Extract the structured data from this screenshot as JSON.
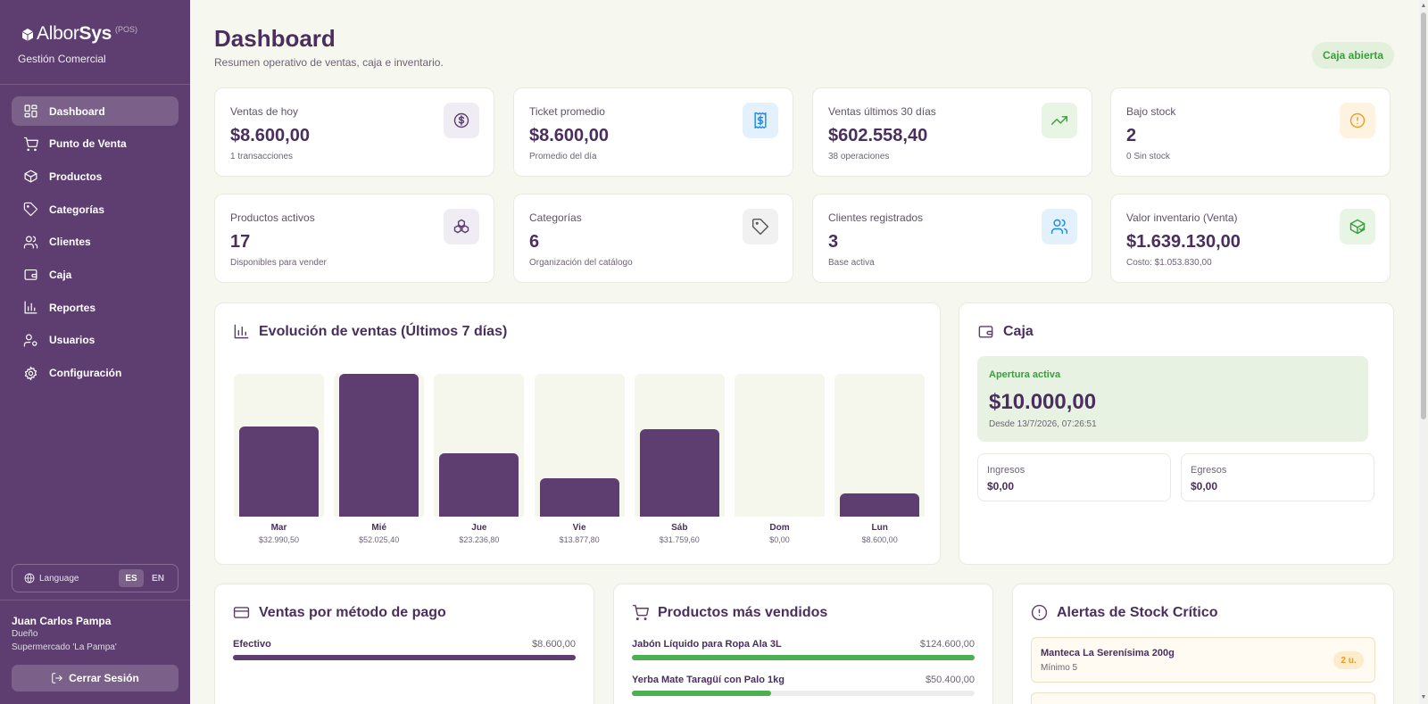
{
  "brand": {
    "name_light": "Albor",
    "name_bold": "Sys",
    "tag": "(POS)",
    "subtitle": "Gestión Comercial"
  },
  "nav": [
    {
      "label": "Dashboard",
      "icon": "dashboard-icon",
      "active": true
    },
    {
      "label": "Punto de Venta",
      "icon": "cart-icon"
    },
    {
      "label": "Productos",
      "icon": "box-icon"
    },
    {
      "label": "Categorías",
      "icon": "tag-icon"
    },
    {
      "label": "Clientes",
      "icon": "users-icon"
    },
    {
      "label": "Caja",
      "icon": "wallet-icon"
    },
    {
      "label": "Reportes",
      "icon": "bar-chart-icon"
    },
    {
      "label": "Usuarios",
      "icon": "user-key-icon"
    },
    {
      "label": "Configuración",
      "icon": "gear-icon"
    }
  ],
  "language": {
    "label": "Language",
    "options": [
      "ES",
      "EN"
    ],
    "selected": "ES"
  },
  "user": {
    "name": "Juan Carlos Pampa",
    "role": "Dueño",
    "store": "Supermercado 'La Pampa'",
    "logout": "Cerrar Sesión"
  },
  "header": {
    "title": "Dashboard",
    "subtitle": "Resumen operativo de ventas, caja e inventario.",
    "status": "Caja abierta"
  },
  "stats": [
    {
      "label": "Ventas de hoy",
      "value": "$8.600,00",
      "sub": "1 transacciones",
      "icon": "dollar-icon",
      "color": "#5e3d70",
      "bg": "#efedf3"
    },
    {
      "label": "Ticket promedio",
      "value": "$8.600,00",
      "sub": "Promedio del día",
      "icon": "receipt-icon",
      "color": "#1e88e5",
      "bg": "#e3f1fc"
    },
    {
      "label": "Ventas últimos 30 días",
      "value": "$602.558,40",
      "sub": "38 operaciones",
      "icon": "trend-up-icon",
      "color": "#3d9d3d",
      "bg": "#e8f4e4"
    },
    {
      "label": "Bajo stock",
      "value": "2",
      "sub": "0 Sin stock",
      "icon": "alert-circle-icon",
      "color": "#f29d1f",
      "bg": "#fef3e1"
    },
    {
      "label": "Productos activos",
      "value": "17",
      "sub": "Disponibles para vender",
      "icon": "boxes-icon",
      "color": "#5e3d70",
      "bg": "#efedf3"
    },
    {
      "label": "Categorías",
      "value": "6",
      "sub": "Organización del catálogo",
      "icon": "tag-icon",
      "color": "#555555",
      "bg": "#f1f1f1"
    },
    {
      "label": "Clientes registrados",
      "value": "3",
      "sub": "Base activa",
      "icon": "users-icon",
      "color": "#1e88e5",
      "bg": "#e3f1fc"
    },
    {
      "label": "Valor inventario (Venta)",
      "value": "$1.639.130,00",
      "sub": "Costo: $1.053.830,00",
      "icon": "package-check-icon",
      "color": "#3d9d3d",
      "bg": "#e8f4e4"
    }
  ],
  "sales_chart": {
    "title": "Evolución de ventas (Últimos 7 días)",
    "chart_data": {
      "type": "bar",
      "categories": [
        "Mar",
        "Mié",
        "Jue",
        "Vie",
        "Sáb",
        "Dom",
        "Lun"
      ],
      "values": [
        32990.5,
        52025.4,
        23236.8,
        13877.8,
        31759.6,
        0,
        8600.0
      ],
      "value_labels": [
        "$32.990,50",
        "$52.025,40",
        "$23.236,80",
        "$13.877,80",
        "$31.759,60",
        "$0,00",
        "$8.600,00"
      ],
      "ylim": [
        0,
        52025.4
      ]
    }
  },
  "caja": {
    "title": "Caja",
    "active_label": "Apertura activa",
    "amount": "$10.000,00",
    "since": "Desde 13/7/2026, 07:26:51",
    "ingresos_label": "Ingresos",
    "ingresos": "$0,00",
    "egresos_label": "Egresos",
    "egresos": "$0,00"
  },
  "payment_methods": {
    "title": "Ventas por método de pago",
    "items": [
      {
        "label": "Efectivo",
        "value": "$8.600,00",
        "fraction": 1.0,
        "color": "#5e3d70"
      }
    ]
  },
  "top_products": {
    "title": "Productos más vendidos",
    "items": [
      {
        "label": "Jabón Líquido para Ropa Ala 3L",
        "value": "$124.600,00",
        "fraction": 1.0,
        "color": "#4caf50"
      },
      {
        "label": "Yerba Mate Taragüí con Palo 1kg",
        "value": "$50.400,00",
        "fraction": 0.405,
        "color": "#4caf50"
      }
    ]
  },
  "stock_alerts": {
    "title": "Alertas de Stock Crítico",
    "items": [
      {
        "name": "Manteca La Serenísima 200g",
        "min": "Mínimo 5",
        "qty": "2 u."
      }
    ]
  }
}
